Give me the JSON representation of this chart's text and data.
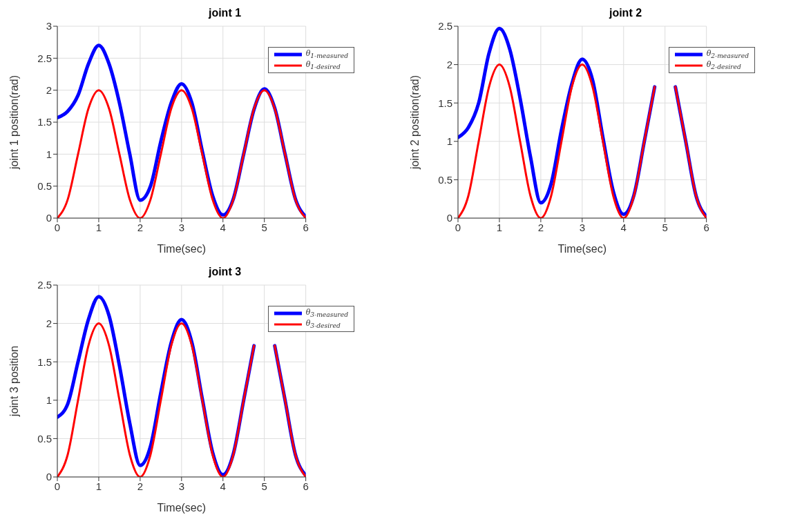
{
  "chart_data": [
    {
      "type": "line",
      "title": "joint 1",
      "xlabel": "Time(sec)",
      "ylabel": "joint 1 position(rad)",
      "x": [
        0,
        0.25,
        0.5,
        0.75,
        1,
        1.25,
        1.5,
        1.75,
        2,
        2.25,
        2.5,
        2.75,
        3,
        3.25,
        3.5,
        3.75,
        4,
        4.25,
        4.5,
        4.75,
        5,
        5.25,
        5.5,
        5.75,
        6
      ],
      "series": [
        {
          "name": "θ$_{1-measured}$",
          "color": "#0000ff",
          "values": [
            1.57,
            1.67,
            1.92,
            2.41,
            2.7,
            2.41,
            1.8,
            1.0,
            0.28,
            0.5,
            1.2,
            1.8,
            2.1,
            1.8,
            1.05,
            0.35,
            0.05,
            0.3,
            1.0,
            1.7,
            2.02,
            1.72,
            1.0,
            0.3,
            0.02
          ]
        },
        {
          "name": "θ$_{1-desired}$",
          "color": "#ff0000",
          "values": [
            0,
            0.29,
            1,
            1.71,
            2,
            1.71,
            1,
            0.29,
            0,
            0.29,
            1,
            1.71,
            2,
            1.71,
            1,
            0.29,
            0,
            0.29,
            1,
            1.71,
            2,
            1.71,
            1,
            0.29,
            0
          ]
        }
      ],
      "xlim": [
        0,
        6
      ],
      "xticks": [
        0,
        1,
        2,
        3,
        4,
        5,
        6
      ],
      "ylim": [
        0,
        3
      ],
      "yticks": [
        0,
        0.5,
        1,
        1.5,
        2,
        2.5,
        3
      ],
      "grid": true,
      "legend": "top right",
      "marker": "none",
      "line_style": "solid"
    },
    {
      "type": "line",
      "title": "joint 2",
      "xlabel": "Time(sec)",
      "ylabel": "joint 2 position(rad)",
      "x": [
        0,
        0.25,
        0.5,
        0.75,
        1,
        1.25,
        1.5,
        1.75,
        2,
        2.25,
        2.5,
        2.75,
        3,
        3.25,
        3.5,
        3.75,
        4,
        4.25,
        4.5,
        4.75,
        5,
        5.25,
        5.5,
        5.75,
        6
      ],
      "series": [
        {
          "name": "θ$_{2-measured}$",
          "color": "#0000ff",
          "values": [
            1.05,
            1.18,
            1.5,
            2.15,
            2.47,
            2.2,
            1.56,
            0.8,
            0.2,
            0.45,
            1.15,
            1.75,
            2.07,
            1.8,
            1.05,
            0.35,
            0.05,
            0.3,
            1.0,
            1.71,
            null,
            1.71,
            1.0,
            0.29,
            0.02
          ]
        },
        {
          "name": "θ$_{2-desired}$",
          "color": "#ff0000",
          "values": [
            0,
            0.29,
            1,
            1.71,
            2,
            1.71,
            1,
            0.29,
            0,
            0.29,
            1,
            1.71,
            2,
            1.71,
            1,
            0.29,
            0,
            0.29,
            1,
            1.71,
            null,
            1.71,
            1,
            0.29,
            0
          ]
        }
      ],
      "xlim": [
        0,
        6
      ],
      "xticks": [
        0,
        1,
        2,
        3,
        4,
        5,
        6
      ],
      "ylim": [
        0,
        2.5
      ],
      "yticks": [
        0,
        0.5,
        1,
        1.5,
        2,
        2.5
      ],
      "grid": true,
      "legend": "top right",
      "marker": "none",
      "line_style": "solid"
    },
    {
      "type": "line",
      "title": "joint 3",
      "xlabel": "Time(sec)",
      "ylabel": "joint 3 position",
      "x": [
        0,
        0.25,
        0.5,
        0.75,
        1,
        1.25,
        1.5,
        1.75,
        2,
        2.25,
        2.5,
        2.75,
        3,
        3.25,
        3.5,
        3.75,
        4,
        4.25,
        4.5,
        4.75,
        5,
        5.25,
        5.5,
        5.75,
        6
      ],
      "series": [
        {
          "name": "θ$_{3-measured}$",
          "color": "#0000ff",
          "values": [
            0.78,
            0.95,
            1.5,
            2.05,
            2.35,
            2.1,
            1.45,
            0.7,
            0.15,
            0.4,
            1.1,
            1.75,
            2.05,
            1.75,
            1.02,
            0.32,
            0.03,
            0.3,
            1.0,
            1.71,
            null,
            1.71,
            1.0,
            0.29,
            0.02
          ]
        },
        {
          "name": "θ$_{3-desired}$",
          "color": "#ff0000",
          "values": [
            0,
            0.29,
            1,
            1.71,
            2,
            1.71,
            1,
            0.29,
            0,
            0.29,
            1,
            1.71,
            2,
            1.71,
            1,
            0.29,
            0,
            0.29,
            1,
            1.71,
            null,
            1.71,
            1,
            0.29,
            0
          ]
        }
      ],
      "xlim": [
        0,
        6
      ],
      "xticks": [
        0,
        1,
        2,
        3,
        4,
        5,
        6
      ],
      "ylim": [
        0,
        2.5
      ],
      "yticks": [
        0,
        0.5,
        1,
        1.5,
        2,
        2.5
      ],
      "grid": true,
      "legend": "top right",
      "marker": "none",
      "line_style": "solid"
    }
  ]
}
